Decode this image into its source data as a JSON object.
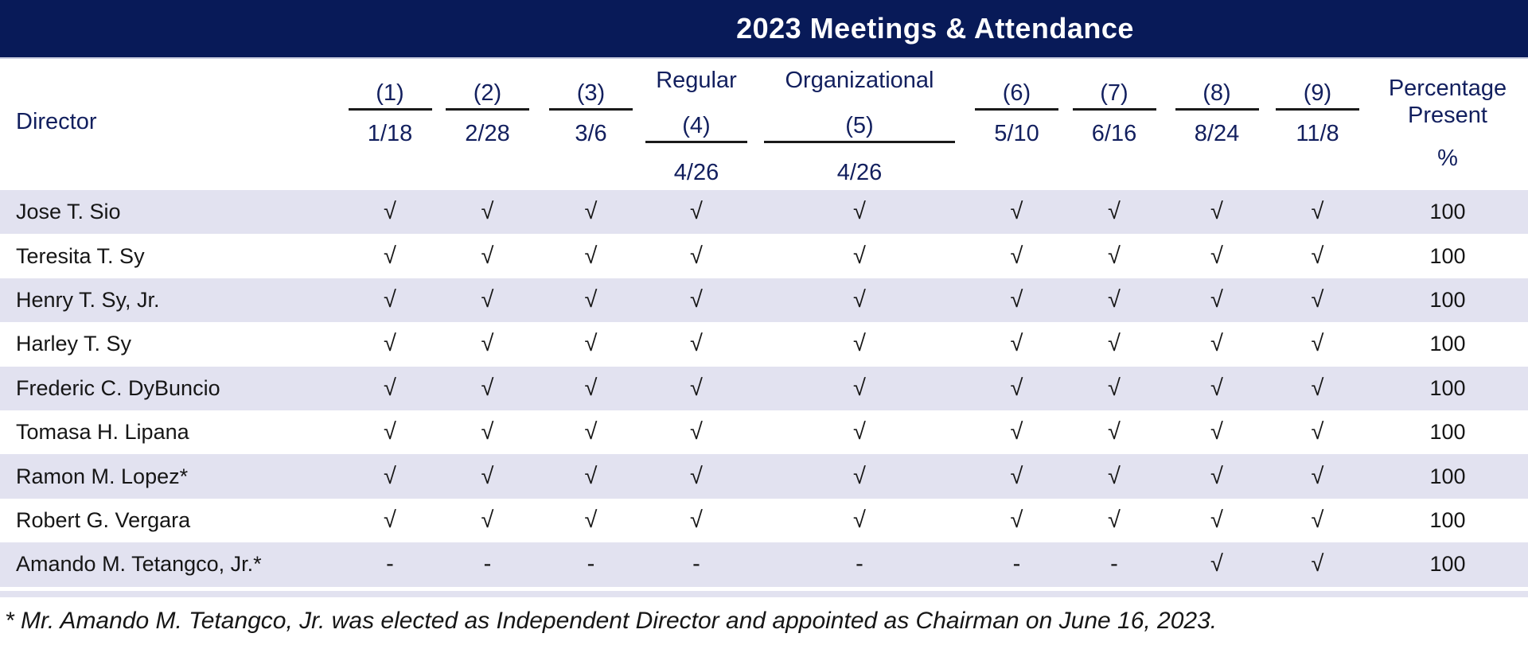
{
  "title": "2023 Meetings & Attendance",
  "columns": [
    {
      "id": "director",
      "kind": "director",
      "label": "Director"
    },
    {
      "id": "m1",
      "kind": "meeting",
      "num": "(1)",
      "date": "1/18"
    },
    {
      "id": "m2",
      "kind": "meeting",
      "num": "(2)",
      "date": "2/28"
    },
    {
      "id": "m3",
      "kind": "meeting",
      "num": "(3)",
      "date": "3/6"
    },
    {
      "id": "m4",
      "kind": "meeting-labeled",
      "top": "Regular",
      "num": "(4)",
      "date": "4/26"
    },
    {
      "id": "m5",
      "kind": "meeting-labeled",
      "top": "Organizational",
      "num": "(5)",
      "date": "4/26"
    },
    {
      "id": "m6",
      "kind": "meeting",
      "num": "(6)",
      "date": "5/10"
    },
    {
      "id": "m7",
      "kind": "meeting",
      "num": "(7)",
      "date": "6/16"
    },
    {
      "id": "m8",
      "kind": "meeting",
      "num": "(8)",
      "date": "8/24"
    },
    {
      "id": "m9",
      "kind": "meeting",
      "num": "(9)",
      "date": "11/8"
    },
    {
      "id": "pct",
      "kind": "percent",
      "label": "Percentage Present",
      "symbol": "%"
    }
  ],
  "marks": {
    "present": "√",
    "absent": "-"
  },
  "rows": [
    {
      "director": "Jose T. Sio",
      "attendance": [
        "√",
        "√",
        "√",
        "√",
        "√",
        "√",
        "√",
        "√",
        "√"
      ],
      "percentage": "100"
    },
    {
      "director": "Teresita T. Sy",
      "attendance": [
        "√",
        "√",
        "√",
        "√",
        "√",
        "√",
        "√",
        "√",
        "√"
      ],
      "percentage": "100"
    },
    {
      "director": "Henry T. Sy, Jr.",
      "attendance": [
        "√",
        "√",
        "√",
        "√",
        "√",
        "√",
        "√",
        "√",
        "√"
      ],
      "percentage": "100"
    },
    {
      "director": "Harley T. Sy",
      "attendance": [
        "√",
        "√",
        "√",
        "√",
        "√",
        "√",
        "√",
        "√",
        "√"
      ],
      "percentage": "100"
    },
    {
      "director": "Frederic C. DyBuncio",
      "attendance": [
        "√",
        "√",
        "√",
        "√",
        "√",
        "√",
        "√",
        "√",
        "√"
      ],
      "percentage": "100"
    },
    {
      "director": "Tomasa H. Lipana",
      "attendance": [
        "√",
        "√",
        "√",
        "√",
        "√",
        "√",
        "√",
        "√",
        "√"
      ],
      "percentage": "100"
    },
    {
      "director": "Ramon M. Lopez*",
      "attendance": [
        "√",
        "√",
        "√",
        "√",
        "√",
        "√",
        "√",
        "√",
        "√"
      ],
      "percentage": "100"
    },
    {
      "director": "Robert G. Vergara",
      "attendance": [
        "√",
        "√",
        "√",
        "√",
        "√",
        "√",
        "√",
        "√",
        "√"
      ],
      "percentage": "100"
    },
    {
      "director": "Amando M. Tetangco, Jr.*",
      "attendance": [
        "-",
        "-",
        "-",
        "-",
        "-",
        "-",
        "-",
        "√",
        "√"
      ],
      "percentage": "100"
    }
  ],
  "footnote": "* Mr. Amando M. Tetangco, Jr. was elected as Independent Director and appointed as Chairman on June 16, 2023.",
  "colors": {
    "band": "#081a58",
    "header_text": "#121f5e",
    "row_alt": "#e2e2f0",
    "text": "#161616",
    "title_text": "#ffffff"
  }
}
